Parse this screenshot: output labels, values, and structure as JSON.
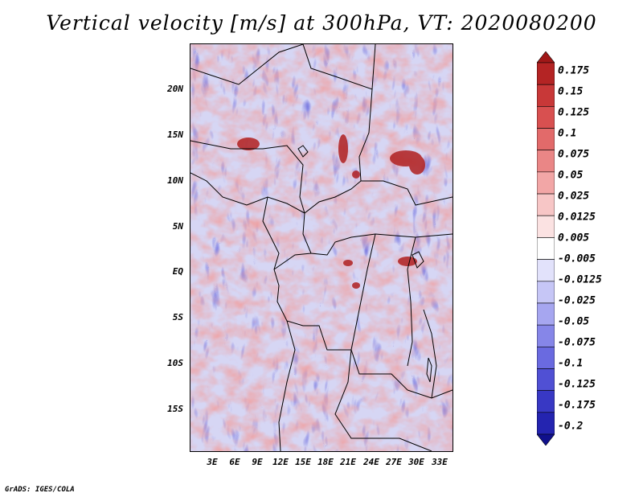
{
  "title": "Vertical velocity [m/s] at 300hPa, VT: 2020080200",
  "lat_labels": [
    "20N",
    "15N",
    "10N",
    "5N",
    "EQ",
    "5S",
    "10S",
    "15S"
  ],
  "lon_labels": [
    "3E",
    "6E",
    "9E",
    "12E",
    "15E",
    "18E",
    "21E",
    "24E",
    "27E",
    "30E",
    "33E"
  ],
  "colorbar": {
    "labels": [
      "0.175",
      "0.15",
      "0.125",
      "0.1",
      "0.075",
      "0.05",
      "0.025",
      "0.0125",
      "0.005",
      "-0.005",
      "-0.0125",
      "-0.025",
      "-0.05",
      "-0.075",
      "-0.1",
      "-0.125",
      "-0.175",
      "-0.2"
    ],
    "colors": [
      "#a01818",
      "#b42424",
      "#c83838",
      "#d85050",
      "#e26a6a",
      "#ea8686",
      "#f2a6a6",
      "#f7c6c6",
      "#fbe2e2",
      "#ffffff",
      "#e2e2fb",
      "#c6c6f6",
      "#a6a6f0",
      "#8686e8",
      "#6a6ae0",
      "#5050d4",
      "#3838c4",
      "#2424b0",
      "#10108c"
    ]
  },
  "footer": "GrADS: IGES/COLA"
}
